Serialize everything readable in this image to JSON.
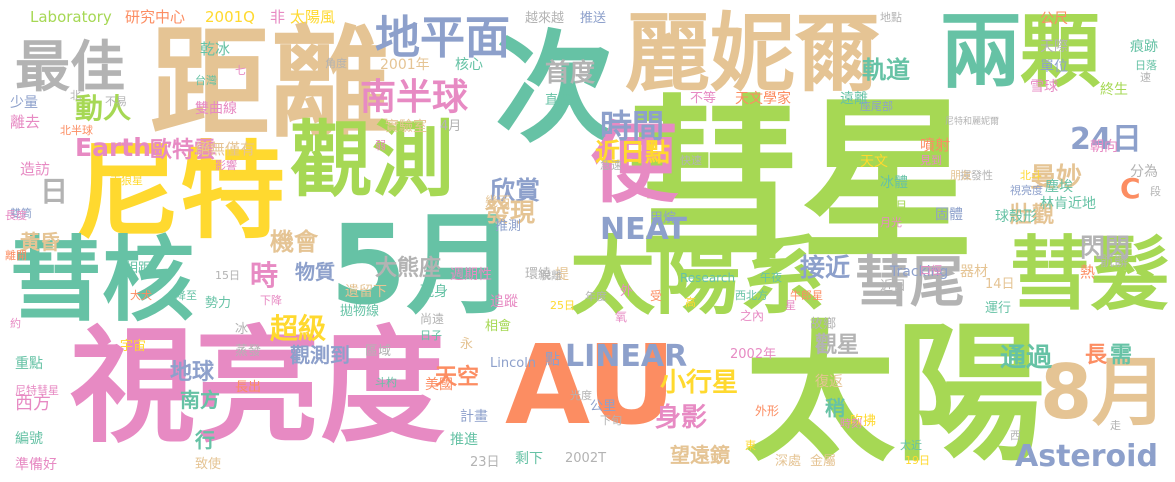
{
  "palette": {
    "green": "#a6d854",
    "teal": "#66c2a5",
    "orange": "#fc8d62",
    "blue": "#8da0cb",
    "pink": "#e78ac3",
    "yellow": "#ffd92f",
    "tan": "#e5c494",
    "gray": "#b3b3b3"
  },
  "words": [
    {
      "text": "彗星",
      "color": "green"
    },
    {
      "text": "太陽",
      "color": "green"
    },
    {
      "text": "距離",
      "color": "tan"
    },
    {
      "text": "尼特",
      "color": "yellow"
    },
    {
      "text": "視亮度",
      "color": "pink"
    },
    {
      "text": "5月",
      "color": "teal"
    },
    {
      "text": "彗核",
      "color": "teal"
    },
    {
      "text": "次",
      "color": "teal"
    },
    {
      "text": "AU",
      "color": "orange"
    },
    {
      "text": "麗妮爾",
      "color": "tan"
    },
    {
      "text": "兩",
      "color": "teal"
    },
    {
      "text": "顆",
      "color": "green"
    },
    {
      "text": "觀測",
      "color": "green"
    },
    {
      "text": "太陽系",
      "color": "green"
    },
    {
      "text": "彗髮",
      "color": "green"
    },
    {
      "text": "8月",
      "color": "tan"
    },
    {
      "text": "彗尾",
      "color": "gray"
    },
    {
      "text": "便",
      "color": "pink"
    },
    {
      "text": "最佳",
      "color": "gray"
    },
    {
      "text": "地平面",
      "color": "blue"
    },
    {
      "text": "時間",
      "color": "blue"
    },
    {
      "text": "南半球",
      "color": "pink"
    },
    {
      "text": "Asteroid",
      "color": "blue"
    },
    {
      "text": "LINEAR",
      "color": "blue"
    },
    {
      "text": "NEAT",
      "color": "blue"
    },
    {
      "text": "24日",
      "color": "blue"
    },
    {
      "text": "動人",
      "color": "green"
    },
    {
      "text": "Earth",
      "color": "pink"
    },
    {
      "text": "歐特雲",
      "color": "pink"
    },
    {
      "text": "首度",
      "color": "gray"
    },
    {
      "text": "軌道",
      "color": "teal"
    },
    {
      "text": "欣賞",
      "color": "blue"
    },
    {
      "text": "近日點",
      "color": "yellow"
    },
    {
      "text": "曼妙",
      "color": "tan"
    },
    {
      "text": "發現",
      "color": "tan"
    },
    {
      "text": "小行星",
      "color": "yellow"
    },
    {
      "text": "接近",
      "color": "blue"
    },
    {
      "text": "身影",
      "color": "pink"
    },
    {
      "text": "超級",
      "color": "yellow"
    },
    {
      "text": "機會",
      "color": "tan"
    },
    {
      "text": "物質",
      "color": "blue"
    },
    {
      "text": "時",
      "color": "pink"
    },
    {
      "text": "閃閃",
      "color": "gray"
    },
    {
      "text": "壯觀",
      "color": "tan"
    },
    {
      "text": "大熊座",
      "color": "gray"
    },
    {
      "text": "天空",
      "color": "orange"
    },
    {
      "text": "地球",
      "color": "blue"
    },
    {
      "text": "通過",
      "color": "teal"
    },
    {
      "text": "觀星",
      "color": "gray"
    },
    {
      "text": "南方",
      "color": "teal"
    },
    {
      "text": "望遠鏡",
      "color": "tan"
    },
    {
      "text": "觀測到",
      "color": "blue"
    },
    {
      "text": "黃昏",
      "color": "tan"
    },
    {
      "text": "日",
      "color": "gray"
    },
    {
      "text": "C",
      "color": "orange"
    },
    {
      "text": "林肯近地",
      "color": "teal"
    },
    {
      "text": "塵埃",
      "color": "teal"
    },
    {
      "text": "西方",
      "color": "pink"
    },
    {
      "text": "稍",
      "color": "teal"
    },
    {
      "text": "長",
      "color": "orange"
    },
    {
      "text": "需",
      "color": "teal"
    },
    {
      "text": "行",
      "color": "teal"
    },
    {
      "text": "Laboratory",
      "color": "green"
    },
    {
      "text": "研究中心",
      "color": "orange"
    },
    {
      "text": "2001Q",
      "color": "yellow"
    },
    {
      "text": "非",
      "color": "pink"
    },
    {
      "text": "太陽風",
      "color": "yellow"
    },
    {
      "text": "越來越",
      "color": "gray"
    },
    {
      "text": "推送",
      "color": "blue"
    },
    {
      "text": "地點",
      "color": "gray"
    },
    {
      "text": "公尺",
      "color": "orange"
    },
    {
      "text": "痕跡",
      "color": "teal"
    },
    {
      "text": "天際",
      "color": "gray"
    },
    {
      "text": "單位",
      "color": "blue"
    },
    {
      "text": "雪球",
      "color": "pink"
    },
    {
      "text": "終生",
      "color": "green"
    },
    {
      "text": "乾冰",
      "color": "teal"
    },
    {
      "text": "台灣",
      "color": "teal"
    },
    {
      "text": "2001年",
      "color": "tan"
    },
    {
      "text": "核心",
      "color": "teal"
    },
    {
      "text": "直徑",
      "color": "teal"
    },
    {
      "text": "天文學家",
      "color": "orange"
    },
    {
      "text": "遠離",
      "color": "teal"
    },
    {
      "text": "座尾部",
      "color": "blue"
    },
    {
      "text": "雙曲線",
      "color": "pink"
    },
    {
      "text": "少量",
      "color": "blue"
    },
    {
      "text": "不易",
      "color": "gray"
    },
    {
      "text": "離去",
      "color": "pink"
    },
    {
      "text": "北半球",
      "color": "orange"
    },
    {
      "text": "實驗室",
      "color": "tan"
    },
    {
      "text": "4月",
      "color": "gray"
    },
    {
      "text": "絕無僅有",
      "color": "tan"
    },
    {
      "text": "影響",
      "color": "pink"
    },
    {
      "text": "噴射",
      "color": "orange"
    },
    {
      "text": "見到",
      "color": "pink"
    },
    {
      "text": "天文",
      "color": "yellow"
    },
    {
      "text": "朝向",
      "color": "pink"
    },
    {
      "text": "分為",
      "color": "gray"
    },
    {
      "text": "造訪",
      "color": "pink"
    },
    {
      "text": "推測",
      "color": "blue"
    },
    {
      "text": "幾百",
      "color": "tan"
    },
    {
      "text": "甲烷",
      "color": "blue"
    },
    {
      "text": "冰體",
      "color": "teal"
    },
    {
      "text": "固體",
      "color": "blue"
    },
    {
      "text": "球殼形",
      "color": "teal"
    },
    {
      "text": "骯髒",
      "color": "gray"
    },
    {
      "text": "雙筒",
      "color": "blue"
    },
    {
      "text": "天狼星",
      "color": "yellow"
    },
    {
      "text": "揮發性",
      "color": "gray"
    },
    {
      "text": "北斗",
      "color": "yellow"
    },
    {
      "text": "10月",
      "color": "green"
    },
    {
      "text": "月光",
      "color": "pink"
    },
    {
      "text": "Tracking",
      "color": "blue"
    },
    {
      "text": "器材",
      "color": "tan"
    },
    {
      "text": "口徑",
      "color": "pink"
    },
    {
      "text": "熱",
      "color": "orange"
    },
    {
      "text": "週期性",
      "color": "pink"
    },
    {
      "text": "環繞",
      "color": "gray"
    },
    {
      "text": "Research",
      "color": "teal"
    },
    {
      "text": "午夜",
      "color": "teal"
    },
    {
      "text": "追蹤",
      "color": "pink"
    },
    {
      "text": "現身",
      "color": "teal"
    },
    {
      "text": "遺留下",
      "color": "tan"
    },
    {
      "text": "勢力",
      "color": "teal"
    },
    {
      "text": "尚遠",
      "color": "gray"
    },
    {
      "text": "相會",
      "color": "green"
    },
    {
      "text": "拋物線",
      "color": "teal"
    },
    {
      "text": "宇宙",
      "color": "yellow"
    },
    {
      "text": "蒸發",
      "color": "gray"
    },
    {
      "text": "區域",
      "color": "gray"
    },
    {
      "text": "永",
      "color": "tan"
    },
    {
      "text": "Lincoln",
      "color": "blue"
    },
    {
      "text": "點",
      "color": "blue"
    },
    {
      "text": "2002年",
      "color": "pink"
    },
    {
      "text": "美國",
      "color": "orange"
    },
    {
      "text": "公里",
      "color": "blue"
    },
    {
      "text": "復返",
      "color": "tan"
    },
    {
      "text": "外形",
      "color": "orange"
    },
    {
      "text": "吹拂",
      "color": "yellow"
    },
    {
      "text": "重點",
      "color": "teal"
    },
    {
      "text": "長出",
      "color": "orange"
    },
    {
      "text": "光度",
      "color": "gray"
    },
    {
      "text": "編號",
      "color": "teal"
    },
    {
      "text": "計畫",
      "color": "blue"
    },
    {
      "text": "下旬",
      "color": "gray"
    },
    {
      "text": "推進",
      "color": "teal"
    },
    {
      "text": "剩下",
      "color": "teal"
    },
    {
      "text": "2002T",
      "color": "gray"
    },
    {
      "text": "深處",
      "color": "tan"
    },
    {
      "text": "金屬",
      "color": "tan"
    },
    {
      "text": "準備好",
      "color": "pink"
    },
    {
      "text": "致使",
      "color": "tan"
    },
    {
      "text": "23日",
      "color": "gray"
    },
    {
      "text": "14日",
      "color": "tan"
    },
    {
      "text": "近日",
      "color": "gray"
    },
    {
      "text": "運行",
      "color": "teal"
    },
    {
      "text": "相距",
      "color": "teal"
    },
    {
      "text": "降至",
      "color": "teal"
    },
    {
      "text": "15日",
      "color": "gray"
    },
    {
      "text": "故鄉",
      "color": "gray"
    },
    {
      "text": "尼特和麗妮爾",
      "color": "gray"
    },
    {
      "text": "西北方",
      "color": "teal"
    },
    {
      "text": "牛郎星",
      "color": "orange"
    },
    {
      "text": "朋友",
      "color": "tan"
    },
    {
      "text": "視亮度",
      "color": "blue"
    },
    {
      "text": "受",
      "color": "orange"
    },
    {
      "text": "之內",
      "color": "pink"
    },
    {
      "text": "快速",
      "color": "gray"
    },
    {
      "text": "急速",
      "color": "gray"
    },
    {
      "text": "提",
      "color": "tan"
    },
    {
      "text": "外",
      "color": "pink"
    },
    {
      "text": "高",
      "color": "yellow"
    },
    {
      "text": "年度",
      "color": "gray"
    },
    {
      "text": "氧",
      "color": "pink"
    },
    {
      "text": "星",
      "color": "pink"
    },
    {
      "text": "長度",
      "color": "pink"
    },
    {
      "text": "離開",
      "color": "orange"
    },
    {
      "text": "下降",
      "color": "pink"
    },
    {
      "text": "日子",
      "color": "teal"
    },
    {
      "text": "斗杓",
      "color": "teal"
    },
    {
      "text": "冰",
      "color": "gray"
    },
    {
      "text": "約",
      "color": "pink"
    },
    {
      "text": "角度",
      "color": "gray"
    },
    {
      "text": "七",
      "color": "pink"
    },
    {
      "text": "不等",
      "color": "pink"
    },
    {
      "text": "弱",
      "color": "pink"
    },
    {
      "text": "北",
      "color": "gray"
    },
    {
      "text": "大犬",
      "color": "orange"
    },
    {
      "text": "時刻",
      "color": "pink"
    },
    {
      "text": "太近",
      "color": "teal"
    },
    {
      "text": "19日",
      "color": "yellow"
    },
    {
      "text": "西",
      "color": "gray"
    },
    {
      "text": "走",
      "color": "gray"
    },
    {
      "text": "日落",
      "color": "teal"
    },
    {
      "text": "速",
      "color": "gray"
    },
    {
      "text": "段",
      "color": "gray"
    },
    {
      "text": "尼特彗星",
      "color": "pink"
    },
    {
      "text": "東",
      "color": "yellow"
    },
    {
      "text": "脫離",
      "color": "gray"
    },
    {
      "text": "25日",
      "color": "yellow"
    }
  ]
}
